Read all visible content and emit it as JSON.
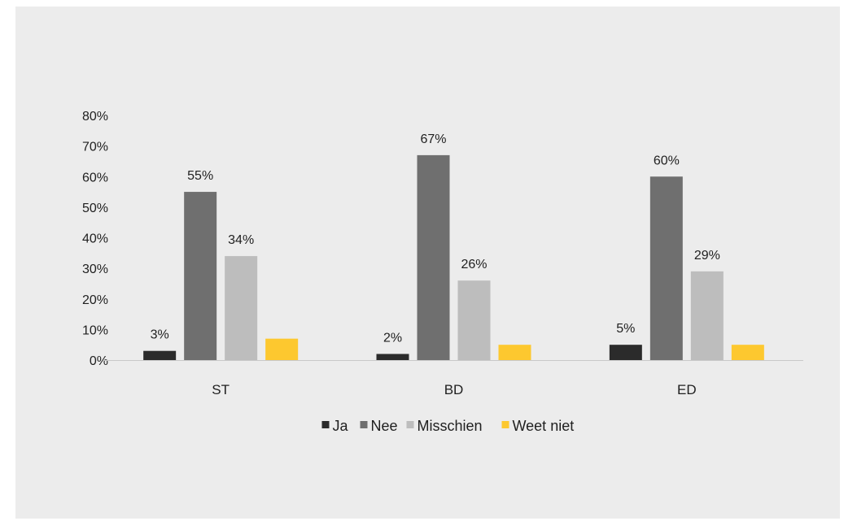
{
  "chart_data": {
    "type": "bar",
    "categories": [
      "ST",
      "BD",
      "ED"
    ],
    "series": [
      {
        "name": "Ja",
        "color": "#2b2b2b",
        "values": [
          3,
          2,
          5
        ],
        "labels": [
          "3%",
          "2%",
          "5%"
        ]
      },
      {
        "name": "Nee",
        "color": "#6f6f6f",
        "values": [
          55,
          67,
          60
        ],
        "labels": [
          "55%",
          "67%",
          "60%"
        ]
      },
      {
        "name": "Misschien",
        "color": "#bdbdbd",
        "values": [
          34,
          26,
          29
        ],
        "labels": [
          "34%",
          "26%",
          "29%"
        ]
      },
      {
        "name": "Weet niet",
        "color": "#fdc82f",
        "values": [
          7,
          5,
          5
        ],
        "labels": [
          "",
          "",
          ""
        ]
      }
    ],
    "ylim": [
      0,
      80
    ],
    "yticks": [
      "0%",
      "10%",
      "20%",
      "30%",
      "40%",
      "50%",
      "60%",
      "70%",
      "80%"
    ],
    "legend": "bottom",
    "grid": false
  }
}
